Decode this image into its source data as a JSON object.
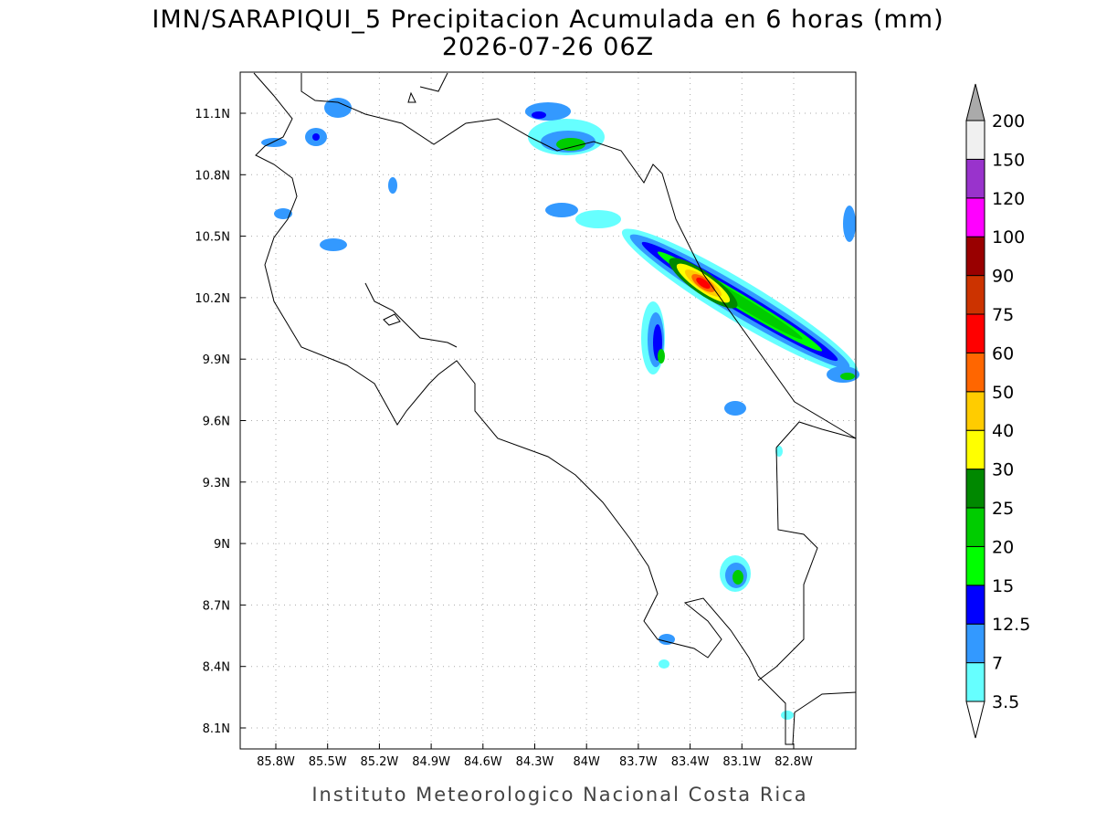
{
  "title": "IMN/SARAPIQUI_5 Precipitacion Acumulada en 6 horas (mm)",
  "subtitle": "2026-07-26 06Z",
  "map": {
    "lon_ticks": [
      "85.8W",
      "85.5W",
      "85.2W",
      "84.9W",
      "84.6W",
      "84.3W",
      "84W",
      "83.7W",
      "83.4W",
      "83.1W",
      "82.8W"
    ],
    "lat_ticks": [
      "11.1N",
      "10.8N",
      "10.5N",
      "10.2N",
      "9.9N",
      "9.6N",
      "9.3N",
      "9N",
      "8.7N",
      "8.4N",
      "8.1N"
    ]
  },
  "colorbar": {
    "levels": [
      {
        "label": "3.5",
        "color": "#66ffff"
      },
      {
        "label": "7",
        "color": "#3399ff"
      },
      {
        "label": "12.5",
        "color": "#0000ff"
      },
      {
        "label": "15",
        "color": "#00ff00"
      },
      {
        "label": "20",
        "color": "#00cc00"
      },
      {
        "label": "25",
        "color": "#008800"
      },
      {
        "label": "30",
        "color": "#ffff00"
      },
      {
        "label": "40",
        "color": "#ffcc00"
      },
      {
        "label": "50",
        "color": "#ff6600"
      },
      {
        "label": "60",
        "color": "#ff0000"
      },
      {
        "label": "75",
        "color": "#cc3300"
      },
      {
        "label": "90",
        "color": "#990000"
      },
      {
        "label": "100",
        "color": "#ff00ff"
      },
      {
        "label": "120",
        "color": "#9933cc"
      },
      {
        "label": "150",
        "color": "#f0f0f0"
      },
      {
        "label": "200",
        "color": "#aaaaaa"
      }
    ]
  },
  "footer": "Instituto Meteorologico Nacional Costa Rica"
}
